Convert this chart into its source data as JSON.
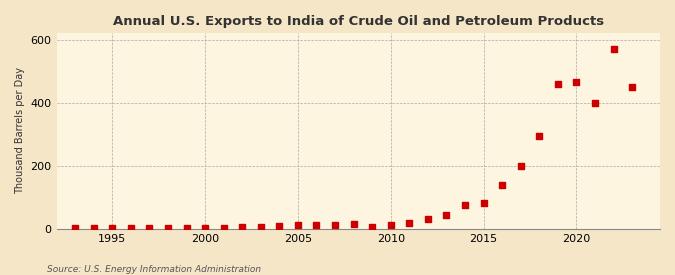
{
  "title": "Annual U.S. Exports to India of Crude Oil and Petroleum Products",
  "ylabel": "Thousand Barrels per Day",
  "source": "Source: U.S. Energy Information Administration",
  "background_color": "#f5e6c8",
  "plot_background_color": "#fdf5e0",
  "marker_color": "#cc0000",
  "grid_color": "#aaaaaa",
  "xlim": [
    1992,
    2024.5
  ],
  "ylim": [
    0,
    620
  ],
  "yticks": [
    0,
    200,
    400,
    600
  ],
  "xticks": [
    1995,
    2000,
    2005,
    2010,
    2015,
    2020
  ],
  "years": [
    1993,
    1994,
    1995,
    1996,
    1997,
    1998,
    1999,
    2000,
    2001,
    2002,
    2003,
    2004,
    2005,
    2006,
    2007,
    2008,
    2009,
    2010,
    2011,
    2012,
    2013,
    2014,
    2015,
    2016,
    2017,
    2018,
    2019,
    2020,
    2021,
    2022,
    2023
  ],
  "values": [
    2,
    2,
    2,
    1,
    2,
    2,
    3,
    3,
    3,
    4,
    5,
    8,
    10,
    11,
    12,
    14,
    5,
    10,
    18,
    30,
    42,
    75,
    80,
    140,
    200,
    295,
    460,
    465,
    400,
    570,
    450
  ]
}
